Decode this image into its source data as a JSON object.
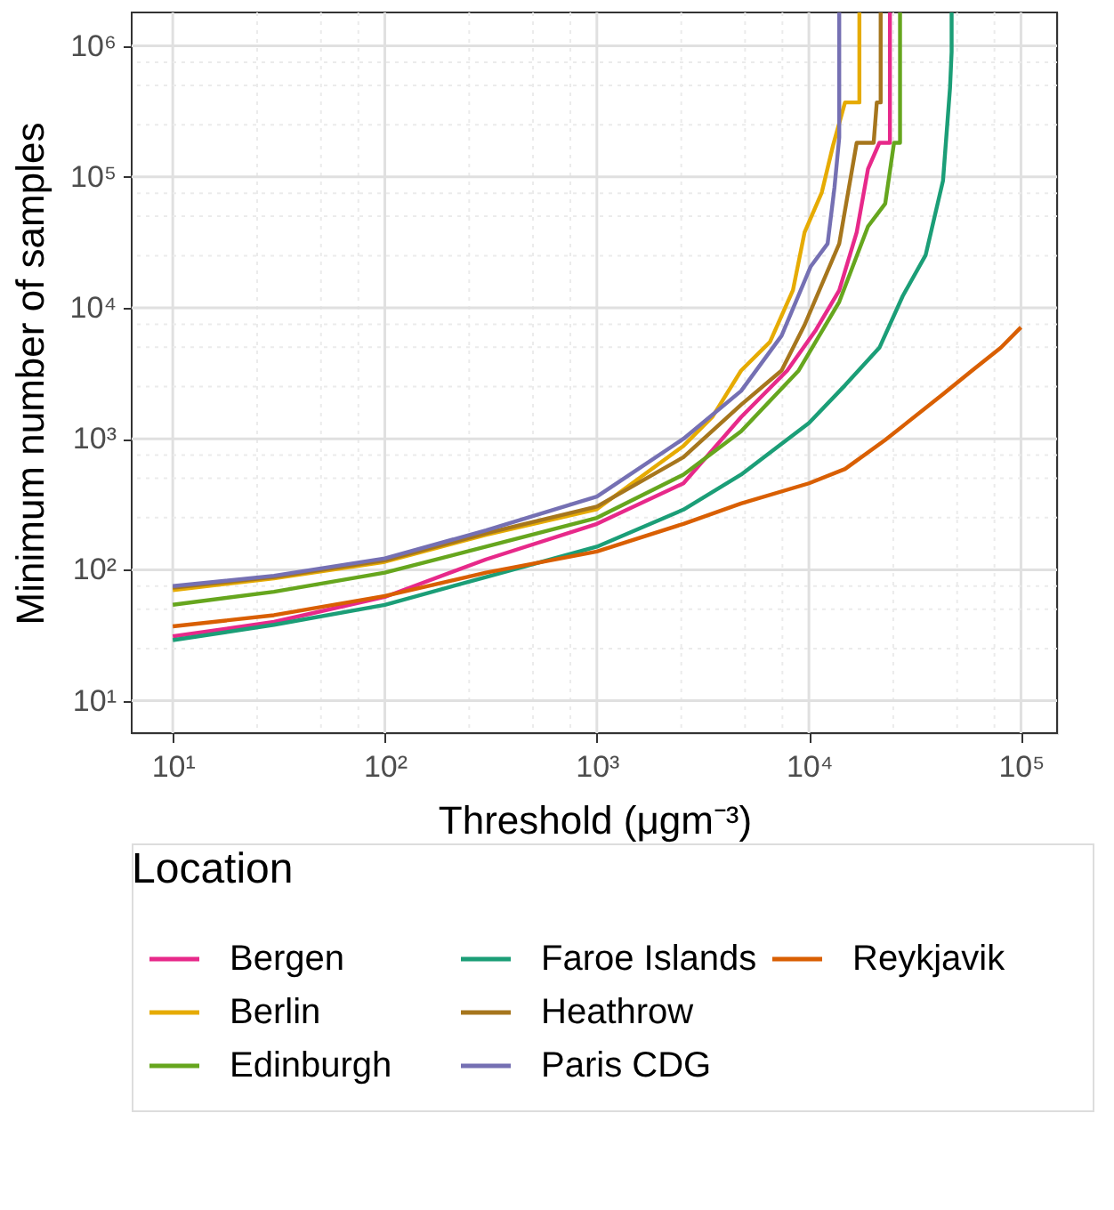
{
  "chart_data": {
    "type": "line",
    "xlabel": "Threshold (μgm⁻³)",
    "ylabel": "Minimum number of samples",
    "legend_title": "Location",
    "legend": "bottom",
    "log": "xy",
    "grid": true,
    "line_style": "solid",
    "marker": "none",
    "xlim": [
      6.4,
      148000
    ],
    "ylim": [
      5.66,
      1800000
    ],
    "xticks": [
      {
        "value": 10,
        "label": "10¹"
      },
      {
        "value": 25,
        "label": null
      },
      {
        "value": 50,
        "label": null
      },
      {
        "value": 75,
        "label": null
      },
      {
        "value": 100,
        "label": "10²"
      },
      {
        "value": 250,
        "label": null
      },
      {
        "value": 500,
        "label": null
      },
      {
        "value": 750,
        "label": null
      },
      {
        "value": 1000,
        "label": "10³"
      },
      {
        "value": 2500,
        "label": null
      },
      {
        "value": 5000,
        "label": null
      },
      {
        "value": 7500,
        "label": null
      },
      {
        "value": 10000,
        "label": "10⁴"
      },
      {
        "value": 25000,
        "label": null
      },
      {
        "value": 50000,
        "label": null
      },
      {
        "value": 75000,
        "label": null
      },
      {
        "value": 100000,
        "label": "10⁵"
      }
    ],
    "yticks": [
      {
        "value": 10,
        "label": "10¹"
      },
      {
        "value": 25,
        "label": null
      },
      {
        "value": 50,
        "label": null
      },
      {
        "value": 75,
        "label": null
      },
      {
        "value": 100,
        "label": "10²"
      },
      {
        "value": 250,
        "label": null
      },
      {
        "value": 500,
        "label": null
      },
      {
        "value": 750,
        "label": null
      },
      {
        "value": 1000,
        "label": "10³"
      },
      {
        "value": 2500,
        "label": null
      },
      {
        "value": 5000,
        "label": null
      },
      {
        "value": 7500,
        "label": null
      },
      {
        "value": 10000,
        "label": "10⁴"
      },
      {
        "value": 25000,
        "label": null
      },
      {
        "value": 50000,
        "label": null
      },
      {
        "value": 75000,
        "label": null
      },
      {
        "value": 100000,
        "label": "10⁵"
      },
      {
        "value": 250000,
        "label": null
      },
      {
        "value": 500000,
        "label": null
      },
      {
        "value": 750000,
        "label": null
      },
      {
        "value": 1000000,
        "label": "10⁶"
      }
    ],
    "series": [
      {
        "name": "Bergen",
        "color": "#e7298a",
        "x": [
          10,
          30,
          100,
          300,
          1000,
          2560,
          4790,
          7900,
          10800,
          13900,
          16800,
          19000,
          21500,
          24100,
          24100
        ],
        "values": [
          31,
          40,
          62,
          120,
          224,
          457,
          1465,
          3320,
          6800,
          13600,
          37700,
          115000,
          182000,
          182000,
          1800000
        ]
      },
      {
        "name": "Berlin",
        "color": "#e6ab02",
        "x": [
          10,
          30,
          100,
          300,
          1000,
          2560,
          3500,
          4790,
          6550,
          8410,
          9540,
          11500,
          13000,
          14800,
          17300,
          17300
        ],
        "values": [
          70,
          86,
          115,
          185,
          290,
          883,
          1465,
          3320,
          5490,
          13650,
          37700,
          76000,
          174000,
          370000,
          370000,
          1800000
        ]
      },
      {
        "name": "Edinburgh",
        "color": "#66a61e",
        "x": [
          10,
          30,
          100,
          300,
          1000,
          2560,
          4790,
          8950,
          13900,
          19000,
          22900,
          25200,
          26900,
          26900
        ],
        "values": [
          54,
          68,
          95,
          150,
          249,
          533,
          1140,
          3320,
          11100,
          41800,
          62400,
          182000,
          182000,
          1800000
        ]
      },
      {
        "name": "Faroe Islands",
        "color": "#1b9e77",
        "x": [
          10,
          30,
          100,
          300,
          1000,
          2560,
          4790,
          10000,
          14800,
          21500,
          27700,
          35500,
          42900,
          46300,
          47100,
          47100
        ],
        "values": [
          29,
          38,
          54,
          88,
          150,
          288,
          533,
          1320,
          2560,
          4960,
          12300,
          25200,
          93600,
          480000,
          900000,
          1800000
        ]
      },
      {
        "name": "Heathrow",
        "color": "#a6761d",
        "x": [
          10,
          30,
          100,
          300,
          1000,
          2560,
          4790,
          7430,
          9540,
          13900,
          16800,
          20200,
          20900,
          21800,
          21800
        ],
        "values": [
          73,
          88,
          118,
          190,
          304,
          724,
          1820,
          3320,
          7400,
          30900,
          182000,
          182000,
          370000,
          370000,
          1800000
        ]
      },
      {
        "name": "Paris CDG",
        "color": "#7570b3",
        "x": [
          10,
          30,
          100,
          300,
          1000,
          2560,
          4790,
          7430,
          10200,
          12250,
          13200,
          13900,
          13900
        ],
        "values": [
          75,
          90,
          122,
          200,
          362,
          1000,
          2320,
          6120,
          20700,
          30900,
          83000,
          200000,
          1800000
        ]
      },
      {
        "name": "Reykjavik",
        "color": "#d95f02",
        "x": [
          10,
          30,
          100,
          300,
          1000,
          2560,
          4790,
          10000,
          14800,
          22900,
          42900,
          58800,
          80400,
          100000
        ],
        "values": [
          37,
          45,
          63,
          95,
          138,
          224,
          321,
          457,
          588,
          980,
          2190,
          3320,
          4960,
          7100
        ]
      }
    ]
  }
}
